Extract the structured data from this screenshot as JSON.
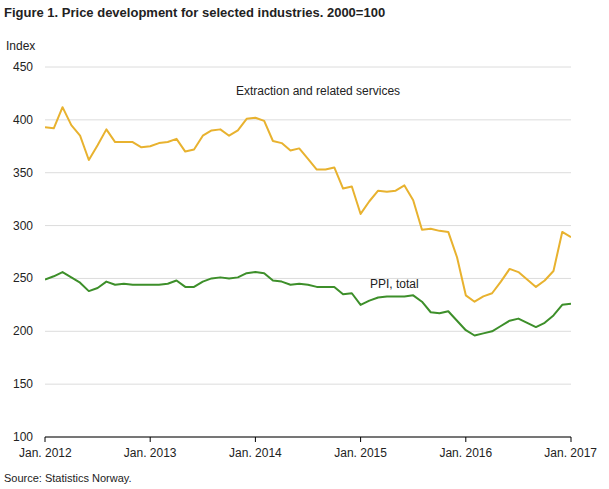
{
  "chart_data": {
    "type": "line",
    "title": "Figure 1. Price development for selected industries. 2000=100",
    "y_label": "Index",
    "source": "Source: Statistics Norway.",
    "categories": [
      "Jan. 2012",
      null,
      null,
      null,
      null,
      null,
      null,
      null,
      null,
      null,
      null,
      null,
      "Jan. 2013",
      null,
      null,
      null,
      null,
      null,
      null,
      null,
      null,
      null,
      null,
      null,
      "Jan. 2014",
      null,
      null,
      null,
      null,
      null,
      null,
      null,
      null,
      null,
      null,
      null,
      "Jan. 2015",
      null,
      null,
      null,
      null,
      null,
      null,
      null,
      null,
      null,
      null,
      null,
      "Jan. 2016",
      null,
      null,
      null,
      null,
      null,
      null,
      null,
      null,
      null,
      null,
      null,
      "Jan. 2017"
    ],
    "series": [
      {
        "name": "Extraction and related services",
        "color": "#e8b22f",
        "values": [
          393,
          392,
          412,
          395,
          385,
          362,
          376,
          391,
          379,
          379,
          379,
          374,
          375,
          378,
          379,
          382,
          370,
          372,
          385,
          390,
          391,
          385,
          390,
          401,
          402,
          399,
          380,
          378,
          371,
          373,
          363,
          353,
          353,
          355,
          335,
          337,
          311,
          323,
          333,
          332,
          333,
          338,
          324,
          296,
          297,
          295,
          294,
          270,
          234,
          228,
          233,
          236,
          247,
          259,
          256,
          249,
          242,
          248,
          257,
          294,
          289
        ]
      },
      {
        "name": "PPI, total",
        "color": "#3d8f2a",
        "values": [
          249,
          252,
          256,
          251,
          246,
          238,
          241,
          247,
          244,
          245,
          244,
          244,
          244,
          244,
          245,
          248,
          242,
          242,
          247,
          250,
          251,
          250,
          251,
          255,
          256,
          255,
          248,
          247,
          244,
          245,
          244,
          242,
          242,
          242,
          235,
          236,
          225,
          229,
          232,
          233,
          233,
          233,
          234,
          228,
          218,
          217,
          219,
          210,
          201,
          196,
          198,
          200,
          205,
          210,
          212,
          208,
          204,
          208,
          215,
          225,
          226
        ]
      }
    ],
    "ylim": [
      100,
      450
    ],
    "yticks": [
      100,
      150,
      200,
      250,
      300,
      350,
      400,
      450
    ],
    "grid": true
  }
}
